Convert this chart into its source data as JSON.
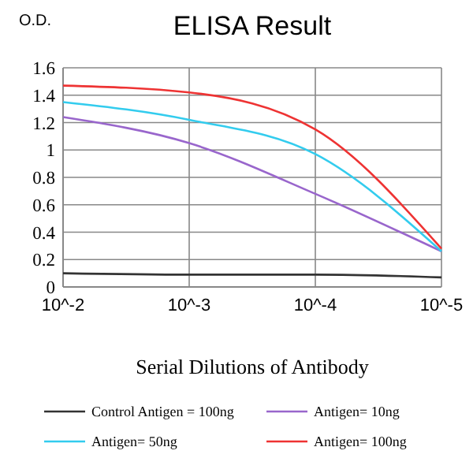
{
  "chart_data": {
    "type": "line",
    "title": "ELISA Result",
    "ylabel": "O.D.",
    "xlabel": "Serial Dilutions of Antibody",
    "categories": [
      "10^-2",
      "10^-3",
      "10^-4",
      "10^-5"
    ],
    "series": [
      {
        "name": "Control Antigen = 100ng",
        "color": "#333333",
        "values": [
          0.1,
          0.09,
          0.09,
          0.07
        ]
      },
      {
        "name": "Antigen= 10ng",
        "color": "#9966cc",
        "values": [
          1.24,
          1.05,
          0.68,
          0.26
        ]
      },
      {
        "name": "Antigen= 50ng",
        "color": "#33ccee",
        "values": [
          1.35,
          1.22,
          0.97,
          0.26
        ]
      },
      {
        "name": "Antigen= 100ng",
        "color": "#ee3333",
        "values": [
          1.47,
          1.42,
          1.15,
          0.28
        ]
      }
    ],
    "ylim": [
      0,
      1.6
    ],
    "yticks": [
      0,
      0.2,
      0.4,
      0.6,
      0.8,
      1,
      1.2,
      1.4,
      1.6
    ],
    "grid": true,
    "legend": "bottom",
    "marker": "none",
    "line_style": "solid"
  }
}
